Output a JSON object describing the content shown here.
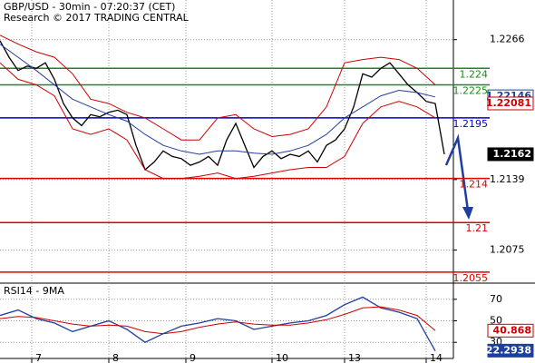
{
  "chart_data": [
    {
      "type": "line",
      "title": "GBP/USD - 30min - 07:20:37 (CET)",
      "subtitle": "Research © 2017 TRADING CENTRAL",
      "xlim": [
        0,
        100
      ],
      "ylim": [
        1.2045,
        1.2302
      ],
      "yticks": [
        1.2266,
        1.2139,
        1.2075
      ],
      "grid": true,
      "series": [
        {
          "name": "Price",
          "color": "#000000",
          "x": [
            0,
            2,
            4,
            6,
            8,
            10,
            12,
            14,
            16,
            18,
            20,
            22,
            24,
            26,
            28,
            30,
            32,
            34,
            36,
            38,
            40,
            42,
            44,
            46,
            48,
            50,
            52,
            54,
            56,
            58,
            60,
            62,
            64,
            66,
            68,
            70,
            72,
            74,
            76,
            78,
            80,
            82,
            84,
            86,
            88,
            90,
            92,
            94,
            96,
            98
          ],
          "values": [
            1.2265,
            1.225,
            1.2238,
            1.2242,
            1.224,
            1.2245,
            1.223,
            1.2208,
            1.2195,
            1.2188,
            1.2198,
            1.2196,
            1.22,
            1.2202,
            1.2198,
            1.217,
            1.2148,
            1.2155,
            1.2165,
            1.216,
            1.2158,
            1.2152,
            1.2155,
            1.216,
            1.2152,
            1.2175,
            1.219,
            1.217,
            1.215,
            1.216,
            1.2165,
            1.2158,
            1.2162,
            1.216,
            1.2165,
            1.2155,
            1.217,
            1.2175,
            1.2185,
            1.2205,
            1.2235,
            1.2232,
            1.224,
            1.2245,
            1.2235,
            1.2225,
            1.2218,
            1.221,
            1.2208,
            1.2162
          ]
        },
        {
          "name": "Upper band",
          "color": "#cc0000",
          "x": [
            0,
            4,
            8,
            12,
            16,
            20,
            24,
            28,
            32,
            36,
            40,
            44,
            48,
            52,
            56,
            60,
            64,
            68,
            72,
            76,
            80,
            84,
            88,
            92,
            96
          ],
          "values": [
            1.227,
            1.2262,
            1.2255,
            1.225,
            1.2235,
            1.2212,
            1.2208,
            1.22,
            1.2195,
            1.2185,
            1.2175,
            1.2175,
            1.2195,
            1.2198,
            1.2185,
            1.2178,
            1.218,
            1.2185,
            1.2205,
            1.2245,
            1.2248,
            1.225,
            1.2248,
            1.224,
            1.2225
          ]
        },
        {
          "name": "Lower band",
          "color": "#cc0000",
          "x": [
            0,
            4,
            8,
            12,
            16,
            20,
            24,
            28,
            32,
            36,
            40,
            44,
            48,
            52,
            56,
            60,
            64,
            68,
            72,
            76,
            80,
            84,
            88,
            92,
            96
          ],
          "values": [
            1.2245,
            1.223,
            1.2225,
            1.2215,
            1.2185,
            1.218,
            1.2185,
            1.2175,
            1.2148,
            1.214,
            1.214,
            1.2142,
            1.2145,
            1.214,
            1.2142,
            1.2145,
            1.2148,
            1.215,
            1.215,
            1.216,
            1.219,
            1.2205,
            1.221,
            1.2205,
            1.2195
          ]
        },
        {
          "name": "Moving average",
          "color": "#1f3fa0",
          "x": [
            0,
            4,
            8,
            12,
            16,
            20,
            24,
            28,
            32,
            36,
            40,
            44,
            48,
            52,
            56,
            60,
            64,
            68,
            72,
            76,
            80,
            84,
            88,
            92,
            96
          ],
          "values": [
            1.2262,
            1.225,
            1.2238,
            1.2225,
            1.2212,
            1.2205,
            1.2198,
            1.2192,
            1.218,
            1.217,
            1.2165,
            1.2162,
            1.2165,
            1.2165,
            1.2163,
            1.2162,
            1.2165,
            1.217,
            1.218,
            1.2195,
            1.2205,
            1.2215,
            1.222,
            1.2218,
            1.2214
          ]
        }
      ],
      "levels": [
        {
          "value": 1.224,
          "color": "#1a8a1a"
        },
        {
          "value": 1.2225,
          "color": "#1a8a1a"
        },
        {
          "value": 1.2195,
          "color": "#0000cc"
        },
        {
          "value": 1.214,
          "color": "#dd0000"
        },
        {
          "value": 1.21,
          "color": "#dd0000"
        },
        {
          "value": 1.2055,
          "color": "#dd0000"
        }
      ],
      "price_labels": [
        {
          "value": 1.22146,
          "color": "#1f3fa0",
          "text_color": "#1f3fa0",
          "fill": "#ffffff"
        },
        {
          "value": 1.22081,
          "color": "#cc0000",
          "text_color": "#cc0000",
          "fill": "#ffffff"
        },
        {
          "value": 1.2162,
          "color": "#000000",
          "text_color": "#ffffff",
          "fill": "#000000"
        }
      ]
    },
    {
      "type": "line",
      "title": "RSI14 - 9MA",
      "xlim": [
        0,
        100
      ],
      "ylim": [
        15,
        85
      ],
      "yticks": [
        30,
        50,
        70
      ],
      "grid": true,
      "xticks": [
        {
          "value": 7,
          "label": "7"
        },
        {
          "value": 24,
          "label": "8"
        },
        {
          "value": 41,
          "label": "9"
        },
        {
          "value": 60,
          "label": "10"
        },
        {
          "value": 76,
          "label": "13"
        },
        {
          "value": 94,
          "label": "14"
        }
      ],
      "series": [
        {
          "name": "RSI14",
          "color": "#1f3fa0",
          "x": [
            0,
            4,
            8,
            12,
            16,
            20,
            24,
            28,
            32,
            36,
            40,
            44,
            48,
            52,
            56,
            60,
            64,
            68,
            72,
            76,
            80,
            84,
            88,
            92,
            96
          ],
          "values": [
            55,
            60,
            52,
            48,
            40,
            45,
            50,
            42,
            30,
            38,
            45,
            48,
            52,
            50,
            42,
            45,
            48,
            50,
            55,
            65,
            72,
            62,
            58,
            52,
            22
          ]
        },
        {
          "name": "9MA",
          "color": "#cc0000",
          "x": [
            0,
            4,
            8,
            12,
            16,
            20,
            24,
            28,
            32,
            36,
            40,
            44,
            48,
            52,
            56,
            60,
            64,
            68,
            72,
            76,
            80,
            84,
            88,
            92,
            96
          ],
          "values": [
            52,
            54,
            53,
            50,
            47,
            45,
            46,
            45,
            40,
            38,
            40,
            44,
            47,
            49,
            47,
            46,
            46,
            48,
            51,
            56,
            62,
            63,
            60,
            55,
            41
          ]
        }
      ],
      "price_labels": [
        {
          "value": 40.868,
          "color": "#cc0000",
          "text_color": "#cc0000",
          "fill": "#ffffff"
        },
        {
          "value": 22.2938,
          "color": "#1f3fa0",
          "text_color": "#ffffff",
          "fill": "#1f3fa0"
        }
      ]
    }
  ]
}
